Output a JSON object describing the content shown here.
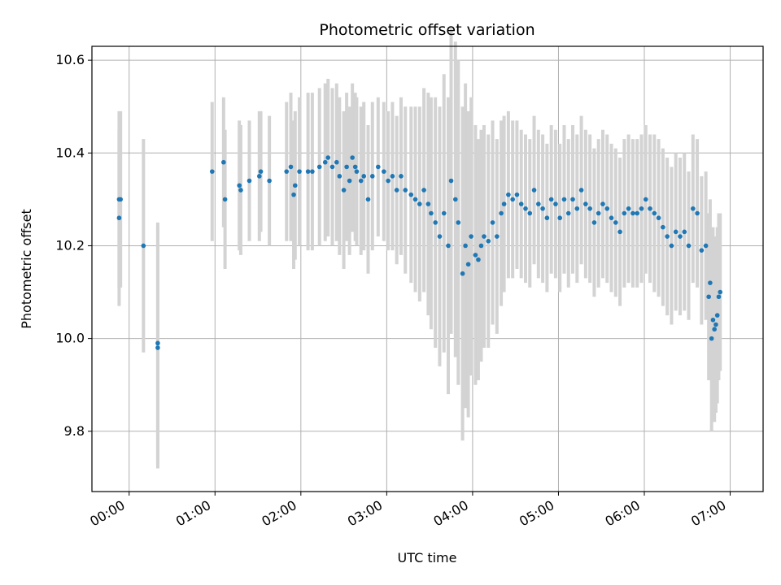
{
  "chart_data": {
    "type": "scatter",
    "title": "Photometric offset variation",
    "xlabel": "UTC time",
    "ylabel": "Photometric offset",
    "xlim": [
      "23:34",
      "07:23"
    ],
    "ylim": [
      9.67,
      10.63
    ],
    "x_ticks": [
      "00:00",
      "01:00",
      "02:00",
      "03:00",
      "04:00",
      "05:00",
      "06:00",
      "07:00"
    ],
    "y_ticks": [
      9.8,
      10.0,
      10.2,
      10.4,
      10.6
    ],
    "grid": true,
    "marker_color": "#1f77b4",
    "errorbar_color": "#d3d3d3",
    "series": [
      {
        "x": [
          "23:53",
          "23:53",
          "23:54",
          "00:10",
          "00:20",
          "00:20",
          "00:58",
          "01:06",
          "01:07",
          "01:17",
          "01:18",
          "01:24",
          "01:31",
          "01:32",
          "01:38",
          "01:50",
          "01:53",
          "01:55",
          "01:56",
          "01:59",
          "02:05",
          "02:08",
          "02:13",
          "02:17",
          "02:19",
          "02:22",
          "02:25",
          "02:27",
          "02:30",
          "02:32",
          "02:34",
          "02:36",
          "02:38",
          "02:39",
          "02:42",
          "02:44",
          "02:47",
          "02:50",
          "02:54",
          "02:58",
          "03:01",
          "03:04",
          "03:07",
          "03:10",
          "03:13",
          "03:17",
          "03:20",
          "03:23",
          "03:26",
          "03:29",
          "03:31",
          "03:34",
          "03:37",
          "03:40",
          "03:43",
          "03:45",
          "03:48",
          "03:50",
          "03:53",
          "03:55",
          "03:57",
          "03:59",
          "04:02",
          "04:04",
          "04:06",
          "04:08",
          "04:11",
          "04:14",
          "04:17",
          "04:20",
          "04:22",
          "04:25",
          "04:28",
          "04:31",
          "04:34",
          "04:37",
          "04:40",
          "04:43",
          "04:46",
          "04:49",
          "04:52",
          "04:55",
          "04:58",
          "05:01",
          "05:04",
          "05:07",
          "05:10",
          "05:13",
          "05:16",
          "05:19",
          "05:22",
          "05:25",
          "05:28",
          "05:31",
          "05:34",
          "05:37",
          "05:40",
          "05:43",
          "05:46",
          "05:49",
          "05:52",
          "05:55",
          "05:58",
          "06:01",
          "06:04",
          "06:07",
          "06:10",
          "06:13",
          "06:16",
          "06:19",
          "06:22",
          "06:25",
          "06:28",
          "06:31",
          "06:34",
          "06:37",
          "06:40",
          "06:43",
          "06:45",
          "06:46",
          "06:47",
          "06:48",
          "06:49",
          "06:50",
          "06:51",
          "06:52",
          "06:53"
        ],
        "y": [
          10.3,
          10.26,
          10.3,
          10.2,
          9.98,
          9.99,
          10.36,
          10.38,
          10.3,
          10.33,
          10.32,
          10.34,
          10.35,
          10.36,
          10.34,
          10.36,
          10.37,
          10.31,
          10.33,
          10.36,
          10.36,
          10.36,
          10.37,
          10.38,
          10.39,
          10.37,
          10.38,
          10.35,
          10.32,
          10.37,
          10.34,
          10.39,
          10.37,
          10.36,
          10.34,
          10.35,
          10.3,
          10.35,
          10.37,
          10.36,
          10.34,
          10.35,
          10.32,
          10.35,
          10.32,
          10.31,
          10.3,
          10.29,
          10.32,
          10.29,
          10.27,
          10.25,
          10.22,
          10.27,
          10.2,
          10.34,
          10.3,
          10.25,
          10.14,
          10.2,
          10.16,
          10.22,
          10.18,
          10.17,
          10.2,
          10.22,
          10.21,
          10.25,
          10.22,
          10.27,
          10.29,
          10.31,
          10.3,
          10.31,
          10.29,
          10.28,
          10.27,
          10.32,
          10.29,
          10.28,
          10.26,
          10.3,
          10.29,
          10.26,
          10.3,
          10.27,
          10.3,
          10.28,
          10.32,
          10.29,
          10.28,
          10.25,
          10.27,
          10.29,
          10.28,
          10.26,
          10.25,
          10.23,
          10.27,
          10.28,
          10.27,
          10.27,
          10.28,
          10.3,
          10.28,
          10.27,
          10.26,
          10.24,
          10.22,
          10.2,
          10.23,
          10.22,
          10.23,
          10.2,
          10.28,
          10.27,
          10.19,
          10.2,
          10.09,
          10.12,
          10.0,
          10.04,
          10.02,
          10.03,
          10.05,
          10.09,
          10.1
        ],
        "err": [
          0.19,
          0.19,
          0.19,
          0.23,
          0.26,
          0.26,
          0.15,
          0.14,
          0.15,
          0.14,
          0.14,
          0.13,
          0.14,
          0.13,
          0.14,
          0.15,
          0.16,
          0.16,
          0.16,
          0.16,
          0.17,
          0.17,
          0.17,
          0.17,
          0.17,
          0.17,
          0.17,
          0.17,
          0.17,
          0.16,
          0.16,
          0.16,
          0.16,
          0.16,
          0.16,
          0.16,
          0.16,
          0.16,
          0.15,
          0.15,
          0.15,
          0.16,
          0.16,
          0.17,
          0.18,
          0.19,
          0.2,
          0.21,
          0.22,
          0.24,
          0.25,
          0.27,
          0.28,
          0.3,
          0.32,
          0.33,
          0.34,
          0.35,
          0.36,
          0.35,
          0.33,
          0.3,
          0.28,
          0.26,
          0.25,
          0.24,
          0.23,
          0.22,
          0.21,
          0.2,
          0.19,
          0.18,
          0.17,
          0.16,
          0.16,
          0.16,
          0.16,
          0.16,
          0.16,
          0.16,
          0.16,
          0.16,
          0.16,
          0.16,
          0.16,
          0.16,
          0.16,
          0.16,
          0.16,
          0.16,
          0.16,
          0.16,
          0.16,
          0.16,
          0.16,
          0.16,
          0.16,
          0.16,
          0.16,
          0.16,
          0.16,
          0.16,
          0.16,
          0.16,
          0.16,
          0.17,
          0.17,
          0.17,
          0.17,
          0.17,
          0.17,
          0.17,
          0.17,
          0.16,
          0.16,
          0.16,
          0.16,
          0.16,
          0.18,
          0.18,
          0.2,
          0.2,
          0.2,
          0.19,
          0.19,
          0.18,
          0.17
        ]
      }
    ]
  }
}
